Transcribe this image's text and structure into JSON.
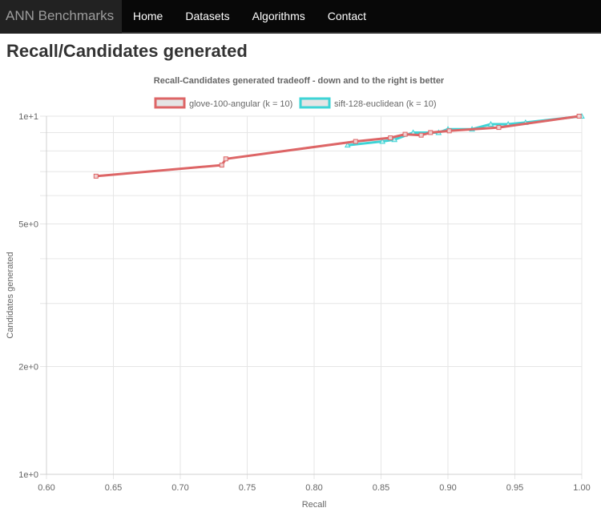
{
  "navbar": {
    "brand": "ANN Benchmarks",
    "items": [
      {
        "label": "Home"
      },
      {
        "label": "Datasets"
      },
      {
        "label": "Algorithms"
      },
      {
        "label": "Contact"
      }
    ]
  },
  "page": {
    "title": "Recall/Candidates generated"
  },
  "chart_data": {
    "type": "line",
    "title": "Recall-Candidates generated tradeoff - down and to the right is better",
    "xlabel": "Recall",
    "ylabel": "Candidates generated",
    "xlim": [
      0.6,
      1.0
    ],
    "ylim": [
      1,
      10
    ],
    "yscale": "log",
    "grid": true,
    "legend_position": "top",
    "x_ticks": [
      "0.60",
      "0.65",
      "0.70",
      "0.75",
      "0.80",
      "0.85",
      "0.90",
      "0.95",
      "1.00"
    ],
    "y_ticks": [
      "1e+1",
      "5e+0",
      "2e+0",
      "1e+0"
    ],
    "series": [
      {
        "name": "glove-100-angular (k = 10)",
        "color": "#dd6566",
        "marker": "square",
        "points": [
          [
            0.637,
            6.8
          ],
          [
            0.731,
            7.3
          ],
          [
            0.734,
            7.6
          ],
          [
            0.831,
            8.5
          ],
          [
            0.857,
            8.7
          ],
          [
            0.868,
            8.9
          ],
          [
            0.88,
            8.85
          ],
          [
            0.887,
            9.0
          ],
          [
            0.901,
            9.1
          ],
          [
            0.938,
            9.3
          ],
          [
            0.998,
            10.0
          ]
        ]
      },
      {
        "name": "sift-128-euclidean (k = 10)",
        "color": "#3ed4d6",
        "marker": "triangle",
        "points": [
          [
            0.825,
            8.3
          ],
          [
            0.851,
            8.5
          ],
          [
            0.86,
            8.6
          ],
          [
            0.874,
            9.0
          ],
          [
            0.893,
            9.0
          ],
          [
            0.9,
            9.2
          ],
          [
            0.918,
            9.2
          ],
          [
            0.932,
            9.5
          ],
          [
            0.945,
            9.5
          ],
          [
            0.958,
            9.6
          ],
          [
            1.0,
            10.0
          ]
        ]
      }
    ]
  }
}
